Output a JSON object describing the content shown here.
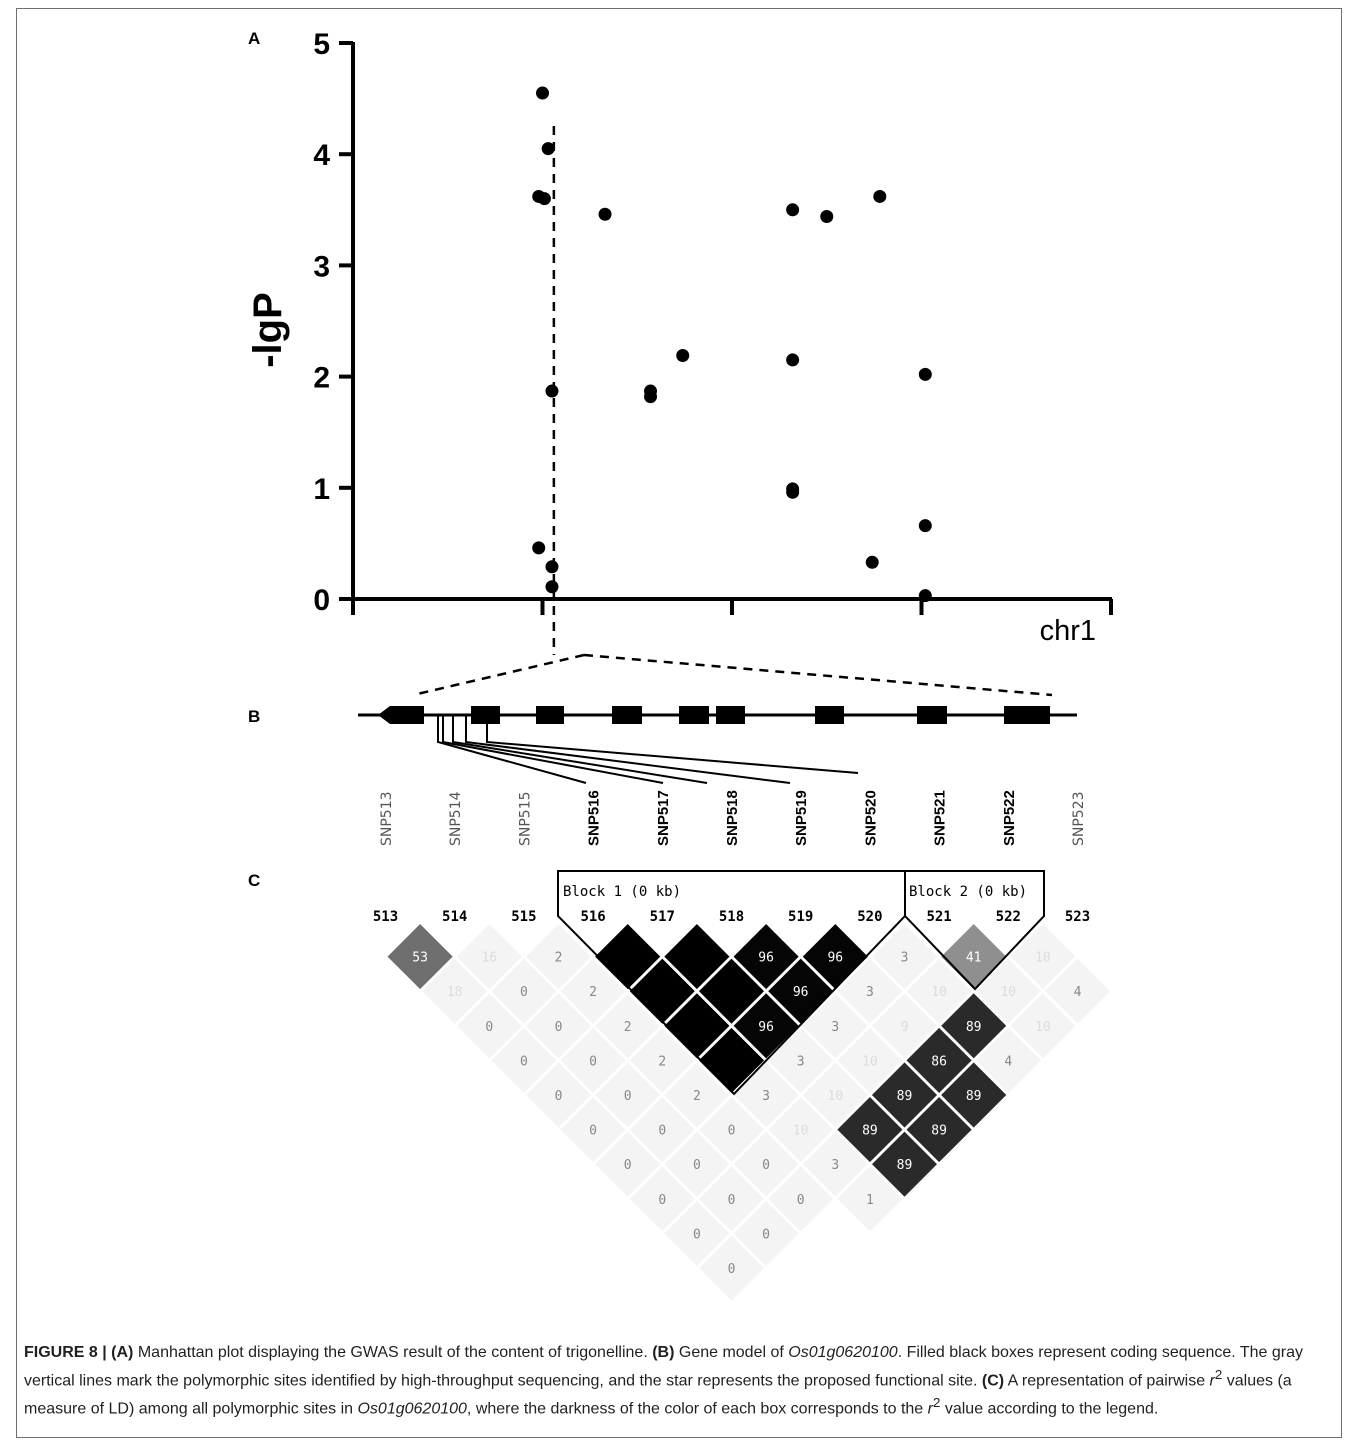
{
  "panels": {
    "a": "A",
    "b": "B",
    "c": "C"
  },
  "chart_data": {
    "type": "scatter",
    "ylabel": "-lgP",
    "xlabel": "chr1",
    "ylim": [
      0,
      5
    ],
    "yticks": [
      "0",
      "1",
      "2",
      "3",
      "4",
      "5"
    ],
    "grid": false,
    "points": [
      {
        "x": 1,
        "y": 4.55
      },
      {
        "x": 1.03,
        "y": 4.05
      },
      {
        "x": 0.98,
        "y": 3.62
      },
      {
        "x": 1.01,
        "y": 3.6
      },
      {
        "x": 1.33,
        "y": 3.46
      },
      {
        "x": 1.05,
        "y": 1.87
      },
      {
        "x": 1.57,
        "y": 1.87
      },
      {
        "x": 1.57,
        "y": 1.82
      },
      {
        "x": 1.74,
        "y": 2.19
      },
      {
        "x": 0.98,
        "y": 0.46
      },
      {
        "x": 1.05,
        "y": 0.29
      },
      {
        "x": 1.05,
        "y": 0.11
      },
      {
        "x": 2.32,
        "y": 3.5
      },
      {
        "x": 2.5,
        "y": 3.44
      },
      {
        "x": 2.78,
        "y": 3.62
      },
      {
        "x": 2.32,
        "y": 2.15
      },
      {
        "x": 3.02,
        "y": 2.02
      },
      {
        "x": 2.32,
        "y": 0.99
      },
      {
        "x": 2.32,
        "y": 0.96
      },
      {
        "x": 3.02,
        "y": 0.66
      },
      {
        "x": 2.74,
        "y": 0.33
      },
      {
        "x": 3.02,
        "y": 0.03
      }
    ],
    "highlight_x": 1.06
  },
  "snps": [
    {
      "label": "SNP513",
      "bold": false
    },
    {
      "label": "SNP514",
      "bold": false
    },
    {
      "label": "SNP515",
      "bold": false
    },
    {
      "label": "SNP516",
      "bold": true
    },
    {
      "label": "SNP517",
      "bold": true
    },
    {
      "label": "SNP518",
      "bold": true
    },
    {
      "label": "SNP519",
      "bold": true
    },
    {
      "label": "SNP520",
      "bold": true
    },
    {
      "label": "SNP521",
      "bold": true
    },
    {
      "label": "SNP522",
      "bold": true
    },
    {
      "label": "SNP523",
      "bold": false
    }
  ],
  "ld": {
    "headers": [
      "513",
      "514",
      "515",
      "516",
      "517",
      "518",
      "519",
      "520",
      "521",
      "522",
      "523"
    ],
    "block1": "Block 1 (0 kb)",
    "block2": "Block 2 (0 kb)",
    "r2": [
      [
        "53",
        "18",
        "0",
        "0",
        "0",
        "0",
        "0",
        "0",
        "0",
        "0"
      ],
      [
        "16",
        "0",
        "0",
        "0",
        "0",
        "0",
        "0",
        "0",
        "0"
      ],
      [
        "2",
        "2",
        "2",
        "2",
        "2",
        "0",
        "0",
        "0"
      ],
      [
        "",
        "",
        "",
        "",
        "3",
        "10",
        "3",
        "1"
      ],
      [
        "",
        "",
        "96",
        "3",
        "10",
        "89",
        "89"
      ],
      [
        "96",
        "96",
        "3",
        "10",
        "89",
        "89"
      ],
      [
        "96",
        "3",
        "9",
        "86",
        "89"
      ],
      [
        "3",
        "10",
        "89",
        "4"
      ],
      [
        "41",
        "10",
        "10"
      ],
      [
        "10",
        "4"
      ]
    ]
  },
  "caption": {
    "fig": "FIGURE 8 |",
    "a_tag": "(A)",
    "a_text": " Manhattan plot displaying the GWAS result of the content of trigonelline. ",
    "b_tag": "(B)",
    "b_text1": " Gene model of ",
    "gene1": "Os01g0620100",
    "b_text2": ". Filled black boxes represent coding sequence. The gray vertical lines mark the polymorphic sites identified by high-throughput sequencing, and the star represents the proposed functional site. ",
    "c_tag": "(C)",
    "c_text1": " A representation of pairwise ",
    "r": "r",
    "sup": "2",
    "c_text2": " values (a measure of LD) among all polymorphic sites in ",
    "gene2": "Os01g0620100",
    "c_text3": ", where the darkness of the color of each box corresponds to the ",
    "r2": "r",
    "sup2": "2",
    "c_text4": " value according to the legend."
  }
}
